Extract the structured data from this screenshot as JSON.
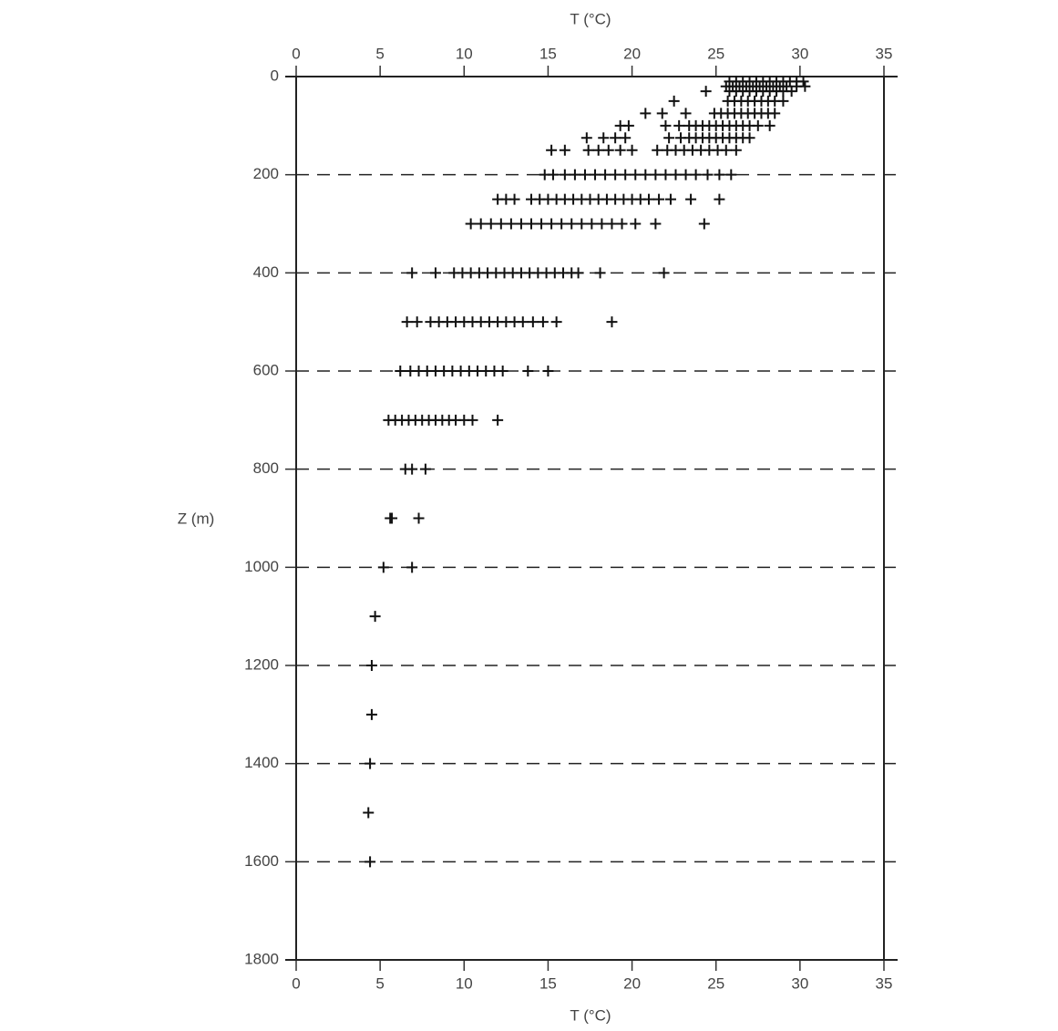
{
  "chart_data": {
    "type": "scatter",
    "xlabel": "T (°C)",
    "xlabel_top": "T (°C)",
    "ylabel": "Z (m)",
    "xlim": [
      0,
      35
    ],
    "xticks": [
      0,
      5,
      10,
      15,
      20,
      25,
      30,
      35
    ],
    "ylim": [
      0,
      1800
    ],
    "yticks": [
      0,
      200,
      400,
      600,
      800,
      1000,
      1200,
      1400,
      1600,
      1800
    ],
    "y_inverted": true,
    "grid": true,
    "marker": "+",
    "color": "#111111",
    "x": [
      25.8,
      26.2,
      26.6,
      27,
      27.4,
      27.8,
      28.2,
      28.6,
      29,
      29.4,
      29.8,
      30.2,
      25.6,
      26,
      26.4,
      26.8,
      27.2,
      27.6,
      28,
      28.4,
      28.8,
      29.2,
      29.8,
      30.3,
      24.4,
      25.8,
      26.2,
      26.6,
      27,
      27.4,
      27.8,
      28.2,
      28.6,
      29,
      29.5,
      22.5,
      25.7,
      26.1,
      26.5,
      26.9,
      27.3,
      27.7,
      28.1,
      28.5,
      29,
      20.8,
      21.8,
      23.2,
      24.9,
      25.3,
      25.7,
      26.1,
      26.5,
      26.9,
      27.3,
      27.7,
      28.1,
      28.5,
      19.3,
      19.8,
      22,
      22.8,
      23.4,
      23.8,
      24.2,
      24.6,
      25,
      25.4,
      25.8,
      26.2,
      26.6,
      27,
      27.5,
      28.2,
      17.3,
      18.3,
      19,
      19.6,
      22.2,
      22.9,
      23.4,
      23.8,
      24.2,
      24.6,
      25,
      25.4,
      25.8,
      26.2,
      26.6,
      27,
      15.2,
      16,
      17.4,
      18,
      18.6,
      19.3,
      20,
      21.5,
      22.1,
      22.6,
      23.1,
      23.6,
      24.1,
      24.6,
      25.1,
      25.6,
      26.2,
      14.8,
      15.3,
      16,
      16.6,
      17.2,
      17.8,
      18.4,
      19,
      19.6,
      20.2,
      20.8,
      21.4,
      22,
      22.6,
      23.2,
      23.8,
      24.5,
      25.2,
      25.9,
      12,
      12.5,
      13,
      14,
      14.5,
      15,
      15.5,
      16,
      16.5,
      17,
      17.5,
      18,
      18.5,
      19,
      19.5,
      20,
      20.5,
      21,
      21.6,
      22.3,
      23.5,
      25.2,
      10.4,
      11,
      11.6,
      12.2,
      12.8,
      13.4,
      14,
      14.6,
      15.2,
      15.8,
      16.4,
      17,
      17.6,
      18.2,
      18.8,
      19.4,
      20.2,
      21.4,
      24.3,
      6.9,
      8.3,
      9.4,
      9.9,
      10.4,
      10.9,
      11.4,
      11.9,
      12.4,
      12.9,
      13.4,
      13.9,
      14.4,
      14.9,
      15.4,
      15.9,
      16.4,
      16.8,
      18.1,
      21.9,
      6.6,
      7.2,
      8,
      8.5,
      9,
      9.5,
      10,
      10.5,
      11,
      11.5,
      12,
      12.5,
      13,
      13.5,
      14.1,
      14.7,
      15.5,
      18.8,
      6.2,
      6.8,
      7.3,
      7.8,
      8.3,
      8.8,
      9.3,
      9.8,
      10.3,
      10.8,
      11.3,
      11.8,
      12.3,
      13.8,
      15,
      5.5,
      5.9,
      6.3,
      6.7,
      7.1,
      7.5,
      7.9,
      8.3,
      8.7,
      9.1,
      9.5,
      10,
      10.5,
      12,
      6.5,
      6.9,
      7.7,
      5.6,
      5.7,
      7.3,
      5.2,
      6.9,
      4.7,
      4.5,
      4.5,
      4.4,
      4.3,
      4.4
    ],
    "values": [
      10,
      10,
      10,
      10,
      10,
      10,
      10,
      10,
      10,
      10,
      10,
      10,
      20,
      20,
      20,
      20,
      20,
      20,
      20,
      20,
      20,
      20,
      20,
      20,
      30,
      30,
      30,
      30,
      30,
      30,
      30,
      30,
      30,
      30,
      30,
      50,
      50,
      50,
      50,
      50,
      50,
      50,
      50,
      50,
      50,
      75,
      75,
      75,
      75,
      75,
      75,
      75,
      75,
      75,
      75,
      75,
      75,
      75,
      100,
      100,
      100,
      100,
      100,
      100,
      100,
      100,
      100,
      100,
      100,
      100,
      100,
      100,
      100,
      100,
      125,
      125,
      125,
      125,
      125,
      125,
      125,
      125,
      125,
      125,
      125,
      125,
      125,
      125,
      125,
      125,
      150,
      150,
      150,
      150,
      150,
      150,
      150,
      150,
      150,
      150,
      150,
      150,
      150,
      150,
      150,
      150,
      150,
      200,
      200,
      200,
      200,
      200,
      200,
      200,
      200,
      200,
      200,
      200,
      200,
      200,
      200,
      200,
      200,
      200,
      200,
      200,
      250,
      250,
      250,
      250,
      250,
      250,
      250,
      250,
      250,
      250,
      250,
      250,
      250,
      250,
      250,
      250,
      250,
      250,
      250,
      250,
      250,
      250,
      300,
      300,
      300,
      300,
      300,
      300,
      300,
      300,
      300,
      300,
      300,
      300,
      300,
      300,
      300,
      300,
      300,
      300,
      300,
      400,
      400,
      400,
      400,
      400,
      400,
      400,
      400,
      400,
      400,
      400,
      400,
      400,
      400,
      400,
      400,
      400,
      400,
      400,
      400,
      500,
      500,
      500,
      500,
      500,
      500,
      500,
      500,
      500,
      500,
      500,
      500,
      500,
      500,
      500,
      500,
      500,
      500,
      600,
      600,
      600,
      600,
      600,
      600,
      600,
      600,
      600,
      600,
      600,
      600,
      600,
      600,
      600,
      700,
      700,
      700,
      700,
      700,
      700,
      700,
      700,
      700,
      700,
      700,
      700,
      700,
      700,
      800,
      800,
      800,
      900,
      900,
      900,
      1000,
      1000,
      1100,
      1200,
      1300,
      1400,
      1500,
      1600
    ]
  }
}
